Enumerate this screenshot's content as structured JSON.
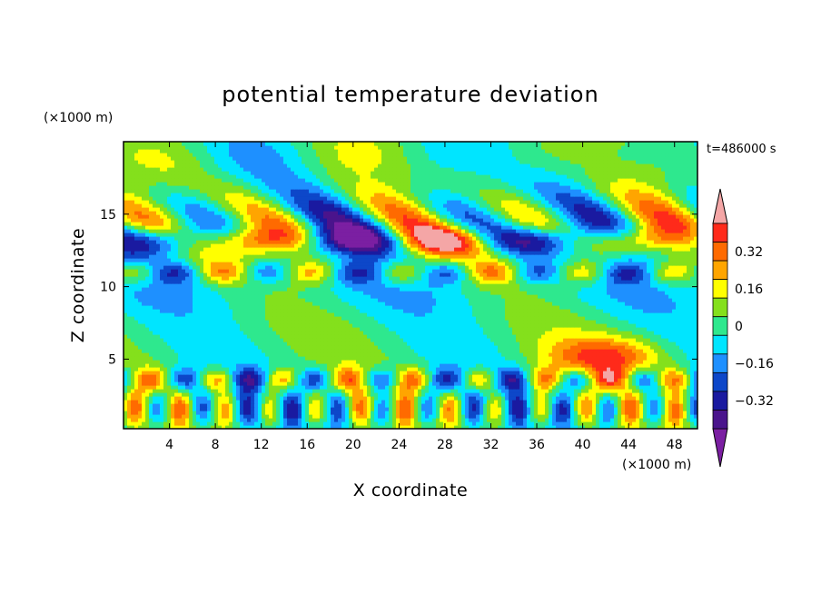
{
  "chart_data": {
    "type": "heatmap",
    "title": "potential temperature deviation",
    "xlabel": "X coordinate",
    "ylabel": "Z coordinate",
    "x_unit": "(×1000 m)",
    "y_unit": "(×1000 m)",
    "time_label": "t=486000 s",
    "xlim": [
      0,
      50
    ],
    "ylim": [
      0.2,
      20
    ],
    "x_ticks": [
      4,
      8,
      12,
      16,
      20,
      24,
      28,
      32,
      36,
      40,
      44,
      48
    ],
    "y_ticks": [
      5,
      10,
      15
    ],
    "colorbar": {
      "levels": [
        -0.48,
        -0.4,
        -0.32,
        -0.24,
        -0.16,
        -0.08,
        0,
        0.08,
        0.16,
        0.24,
        0.32,
        0.4,
        0.48
      ],
      "colors": [
        "#7b1fa2",
        "#4a148c",
        "#1a1aa0",
        "#0d47c9",
        "#1e90ff",
        "#00e5ff",
        "#2ee88e",
        "#84e01c",
        "#ffff00",
        "#ffa500",
        "#ff6a00",
        "#ff2a1a",
        "#f4a6a6"
      ],
      "tick_labels": [
        "0.32",
        "0.16",
        "0",
        "−0.16",
        "−0.32"
      ],
      "tick_values": [
        0.32,
        0.16,
        0,
        -0.16,
        -0.32
      ]
    },
    "field_note": ""
  }
}
